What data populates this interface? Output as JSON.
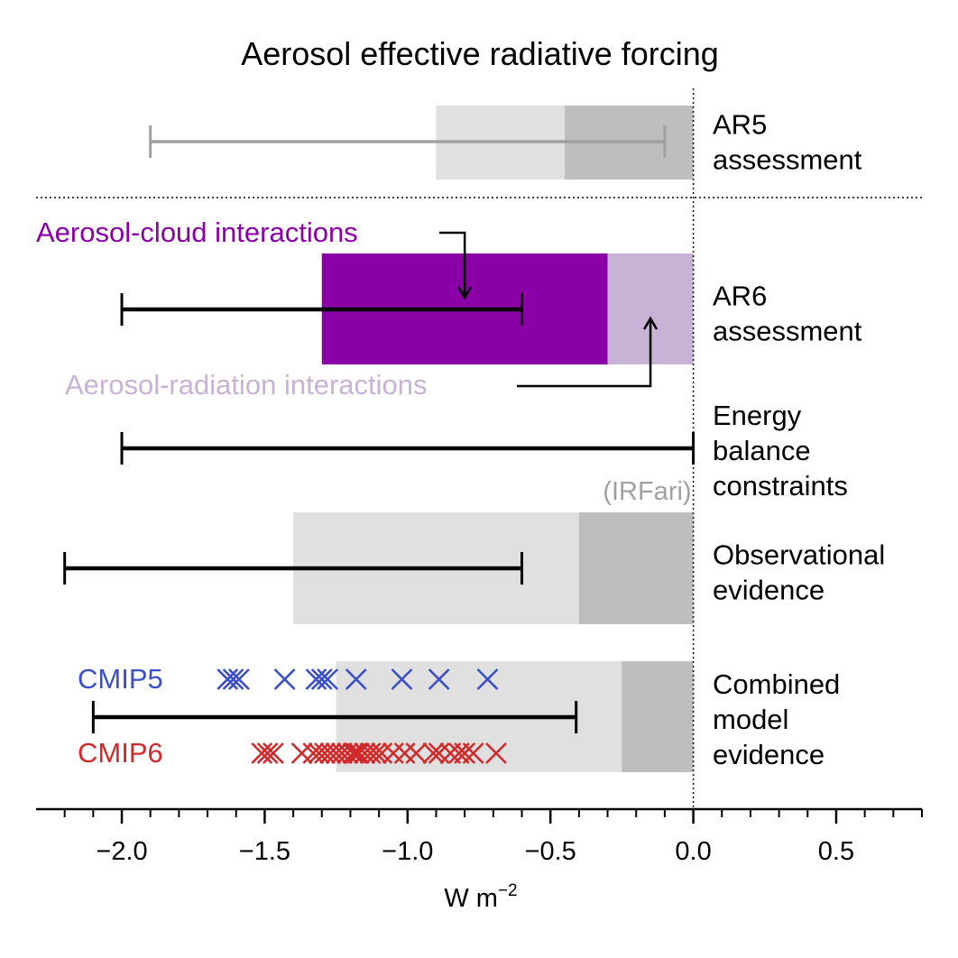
{
  "chart_data": {
    "type": "bar",
    "title": "Aerosol effective radiative forcing",
    "xlabel": "W m",
    "xlabel_superscript": "−2",
    "xlim": [
      -2.3,
      0.8
    ],
    "xticks": [
      {
        "value": -2.0,
        "label": "−2.0"
      },
      {
        "value": -1.5,
        "label": "−1.5"
      },
      {
        "value": -1.0,
        "label": "−1.0"
      },
      {
        "value": -0.5,
        "label": "−0.5"
      },
      {
        "value": 0.0,
        "label": "0.0"
      },
      {
        "value": 0.5,
        "label": "0.5"
      }
    ],
    "minor_tick_step": 0.1,
    "zero_line": true,
    "rows": [
      {
        "key": "ar5",
        "label_lines": [
          "AR5",
          "assessment"
        ],
        "bars": [
          {
            "from": -0.9,
            "to": -0.45,
            "color": "#e0e0e0"
          },
          {
            "from": -0.45,
            "to": 0.0,
            "color": "#bebebe"
          }
        ],
        "range": {
          "low": -1.9,
          "high": -0.1,
          "color": "#a0a0a0"
        }
      },
      {
        "key": "ar6",
        "label_lines": [
          "AR6",
          "assessment"
        ],
        "bars": [
          {
            "name": "Aerosol-cloud interactions",
            "from": -1.3,
            "to": -0.3,
            "color": "#8b00a6"
          },
          {
            "name": "Aerosol-radiation interactions",
            "from": -0.3,
            "to": 0.0,
            "color": "#c8b2d6"
          }
        ],
        "range": {
          "low": -2.0,
          "high": -0.6,
          "color": "#000000"
        }
      },
      {
        "key": "energy",
        "label_lines": [
          "Energy",
          "balance",
          "constraints"
        ],
        "bars": [],
        "range": {
          "low": -2.0,
          "high": 0.0,
          "color": "#000000"
        }
      },
      {
        "key": "obs",
        "label_lines": [
          "Observational",
          "evidence"
        ],
        "bars": [
          {
            "from": -1.4,
            "to": -0.4,
            "color": "#e0e0e0"
          },
          {
            "from": -0.4,
            "to": 0.0,
            "color": "#bebebe",
            "name": "(IRFari)"
          }
        ],
        "range": {
          "low": -2.2,
          "high": -0.6,
          "color": "#000000"
        }
      },
      {
        "key": "model",
        "label_lines": [
          "Combined",
          "model",
          "evidence"
        ],
        "bars": [
          {
            "from": -1.25,
            "to": -0.25,
            "color": "#e0e0e0"
          },
          {
            "from": -0.25,
            "to": 0.0,
            "color": "#bebebe"
          }
        ],
        "range": {
          "low": -2.1,
          "high": -0.41,
          "color": "#000000"
        }
      }
    ],
    "series": [
      {
        "name": "CMIP5",
        "color": "#3a4fc8",
        "values": [
          -1.63,
          -1.61,
          -1.59,
          -1.43,
          -1.32,
          -1.3,
          -1.28,
          -1.18,
          -1.02,
          -0.89,
          -0.72
        ]
      },
      {
        "name": "CMIP6",
        "color": "#d12a2a",
        "values": [
          -1.51,
          -1.49,
          -1.47,
          -1.37,
          -1.33,
          -1.31,
          -1.29,
          -1.27,
          -1.25,
          -1.23,
          -1.21,
          -1.19,
          -1.18,
          -1.17,
          -1.15,
          -1.13,
          -1.11,
          -1.09,
          -1.05,
          -1.01,
          -0.97,
          -0.91,
          -0.89,
          -0.85,
          -0.82,
          -0.8,
          -0.77,
          -0.69
        ]
      }
    ],
    "annotations": {
      "aci_label": "Aerosol-cloud interactions",
      "ari_label": "Aerosol-radiation interactions",
      "irfari_label": "(IRFari)",
      "cmip5_label": "CMIP5",
      "cmip6_label": "CMIP6"
    },
    "colors": {
      "aci": "#8b00a6",
      "ari": "#c8b2d6",
      "irfari": "#a0a0a0",
      "cmip5": "#3a4fc8",
      "cmip6": "#d12a2a"
    }
  }
}
